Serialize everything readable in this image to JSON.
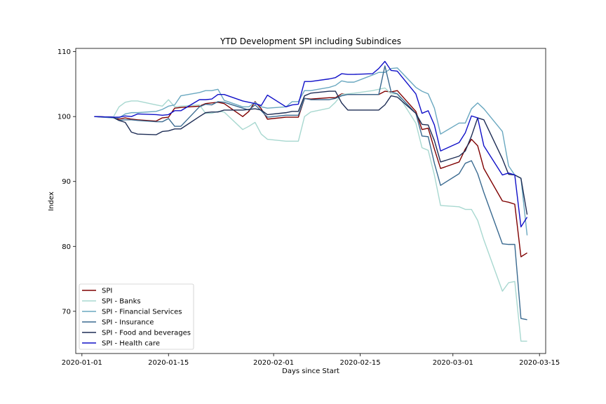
{
  "chart_data": {
    "type": "line",
    "title": "YTD Development SPI including Subindices",
    "xlabel": "Days since Start",
    "ylabel": "Index",
    "xlim": [
      "2019-12-31",
      "2020-03-16"
    ],
    "ylim": [
      63.5,
      110.5
    ],
    "xticks": [
      {
        "date": "2020-01-01",
        "label": "2020-01-01"
      },
      {
        "date": "2020-01-15",
        "label": "2020-01-15"
      },
      {
        "date": "2020-02-01",
        "label": "2020-02-01"
      },
      {
        "date": "2020-02-15",
        "label": "2020-02-15"
      },
      {
        "date": "2020-03-01",
        "label": "2020-03-01"
      },
      {
        "date": "2020-03-15",
        "label": "2020-03-15"
      }
    ],
    "yticks": [
      70,
      80,
      90,
      100,
      110
    ],
    "legend_position": "lower-left",
    "x": [
      "2020-01-03",
      "2020-01-06",
      "2020-01-07",
      "2020-01-08",
      "2020-01-09",
      "2020-01-10",
      "2020-01-13",
      "2020-01-14",
      "2020-01-15",
      "2020-01-16",
      "2020-01-17",
      "2020-01-20",
      "2020-01-21",
      "2020-01-22",
      "2020-01-23",
      "2020-01-24",
      "2020-01-27",
      "2020-01-28",
      "2020-01-29",
      "2020-01-30",
      "2020-01-31",
      "2020-02-03",
      "2020-02-04",
      "2020-02-05",
      "2020-02-06",
      "2020-02-07",
      "2020-02-10",
      "2020-02-11",
      "2020-02-12",
      "2020-02-13",
      "2020-02-14",
      "2020-02-17",
      "2020-02-18",
      "2020-02-19",
      "2020-02-20",
      "2020-02-21",
      "2020-02-24",
      "2020-02-25",
      "2020-02-26",
      "2020-02-27",
      "2020-02-28",
      "2020-03-02",
      "2020-03-03",
      "2020-03-04",
      "2020-03-05",
      "2020-03-06",
      "2020-03-09",
      "2020-03-10",
      "2020-03-11",
      "2020-03-12",
      "2020-03-13"
    ],
    "series": [
      {
        "name": "SPI",
        "color": "#7f0000",
        "values": [
          100,
          99.9,
          99.6,
          99.8,
          99.6,
          99.5,
          99.3,
          99.8,
          99.9,
          101.3,
          101.4,
          101.6,
          102.0,
          102.1,
          102.2,
          102.0,
          100.0,
          100.8,
          102.3,
          101.2,
          99.6,
          99.9,
          99.9,
          99.9,
          102.8,
          102.7,
          102.9,
          102.9,
          103.5,
          103.4,
          103.4,
          103.4,
          103.4,
          103.9,
          103.8,
          104.0,
          100.8,
          98.0,
          98.2,
          95.0,
          92.0,
          93.0,
          95.0,
          96.5,
          95.5,
          92.0,
          87.0,
          86.8,
          86.5,
          78.4,
          79.0
        ]
      },
      {
        "name": "SPI - Banks",
        "color": "#a8d8d0",
        "values": [
          100,
          99.8,
          101.5,
          102.2,
          102.4,
          102.4,
          101.8,
          101.6,
          102.6,
          101.5,
          101.6,
          101.8,
          100.5,
          100.5,
          100.8,
          100.7,
          98.0,
          98.5,
          99.1,
          97.3,
          96.5,
          96.2,
          96.2,
          96.2,
          100.0,
          100.7,
          101.3,
          102.2,
          103.4,
          103.5,
          103.6,
          104.0,
          104.2,
          104.4,
          103.5,
          103.5,
          99.0,
          95.2,
          94.8,
          91.0,
          86.3,
          86.1,
          85.7,
          85.7,
          84.0,
          81.0,
          73.1,
          74.4,
          74.6,
          65.4,
          65.4
        ]
      },
      {
        "name": "SPI - Financial Services",
        "color": "#6aa8c0",
        "values": [
          100,
          99.8,
          99.8,
          100.4,
          100.6,
          100.6,
          100.8,
          101.1,
          101.6,
          101.8,
          103.2,
          103.7,
          104.0,
          104.0,
          104.2,
          102.5,
          101.5,
          101.5,
          102.2,
          101.5,
          101.3,
          101.5,
          102.3,
          102.3,
          104.0,
          104.0,
          104.5,
          104.8,
          105.5,
          105.3,
          105.3,
          106.4,
          106.8,
          106.8,
          107.4,
          107.5,
          104.5,
          103.9,
          103.5,
          101.3,
          97.3,
          99.0,
          99.0,
          101.2,
          102.1,
          101.2,
          97.7,
          92.4,
          91.0,
          90.5,
          81.7
        ]
      },
      {
        "name": "SPI - Insurance",
        "color": "#3a6a90",
        "values": [
          100,
          99.9,
          99.4,
          99.5,
          99.5,
          99.4,
          99.2,
          99.2,
          99.7,
          98.5,
          98.5,
          101.5,
          101.9,
          101.8,
          102.3,
          102.2,
          101.3,
          101.0,
          101.8,
          100.9,
          99.9,
          100.2,
          100.2,
          100.2,
          102.8,
          102.6,
          102.6,
          102.8,
          103.2,
          103.4,
          103.4,
          103.4,
          103.4,
          107.8,
          103.8,
          103.5,
          100.5,
          97.0,
          96.9,
          92.8,
          89.4,
          91.2,
          92.8,
          93.2,
          91.2,
          88.3,
          80.4,
          80.3,
          80.3,
          68.9,
          68.7
        ]
      },
      {
        "name": "SPI - Food and beverages",
        "color": "#1e2d55",
        "values": [
          100,
          99.9,
          99.4,
          99.1,
          97.6,
          97.3,
          97.2,
          97.7,
          97.8,
          98.1,
          98.1,
          100.0,
          100.6,
          100.7,
          100.7,
          101.0,
          101.0,
          101.1,
          101.2,
          101.0,
          100.3,
          100.6,
          100.8,
          100.8,
          103.2,
          103.6,
          103.9,
          103.9,
          102.1,
          101.0,
          101.0,
          101.0,
          101.0,
          101.8,
          103.2,
          103.0,
          100.5,
          98.8,
          98.7,
          96.3,
          93.0,
          93.9,
          94.7,
          97.0,
          99.8,
          99.5,
          93.5,
          91.1,
          91.0,
          90.5,
          84.9
        ]
      },
      {
        "name": "SPI - Health care",
        "color": "#1010c8",
        "values": [
          100,
          99.9,
          99.9,
          100.1,
          100.0,
          100.4,
          100.3,
          100.2,
          100.3,
          100.9,
          100.9,
          102.6,
          102.6,
          102.7,
          103.4,
          103.4,
          102.4,
          102.2,
          102.0,
          101.7,
          103.3,
          101.5,
          101.8,
          101.9,
          105.4,
          105.4,
          105.8,
          106.0,
          106.6,
          106.5,
          106.5,
          106.6,
          107.4,
          108.5,
          107.1,
          107.0,
          103.5,
          100.5,
          100.9,
          98.7,
          94.7,
          96.0,
          97.5,
          100.1,
          99.8,
          95.5,
          91.0,
          91.3,
          91.0,
          83.0,
          84.5
        ]
      }
    ]
  }
}
